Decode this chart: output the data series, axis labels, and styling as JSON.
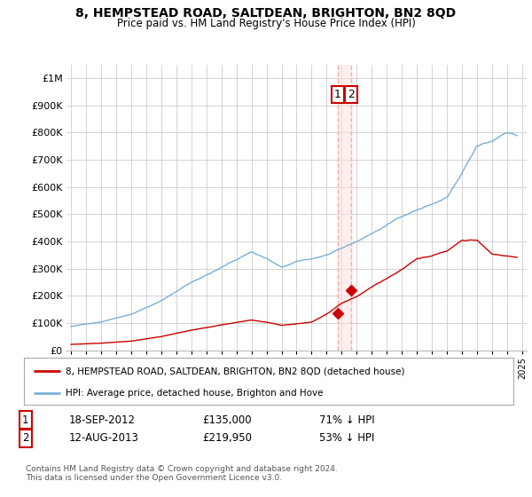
{
  "title": "8, HEMPSTEAD ROAD, SALTDEAN, BRIGHTON, BN2 8QD",
  "subtitle": "Price paid vs. HM Land Registry's House Price Index (HPI)",
  "legend_line1": "8, HEMPSTEAD ROAD, SALTDEAN, BRIGHTON, BN2 8QD (detached house)",
  "legend_line2": "HPI: Average price, detached house, Brighton and Hove",
  "annotation1_date": "18-SEP-2012",
  "annotation1_price": "£135,000",
  "annotation1_hpi": "71% ↓ HPI",
  "annotation2_date": "12-AUG-2013",
  "annotation2_price": "£219,950",
  "annotation2_hpi": "53% ↓ HPI",
  "copyright": "Contains HM Land Registry data © Crown copyright and database right 2024.\nThis data is licensed under the Open Government Licence v3.0.",
  "sale1_x": 2012.72,
  "sale1_y": 135000,
  "sale2_x": 2013.62,
  "sale2_y": 219950,
  "hpi_color": "#7ab0d4",
  "price_color": "#cc0000",
  "vline_color": "#ffaaaa",
  "vfill_color": "#ffe0e0",
  "bg_color": "#ffffff",
  "grid_color": "#cccccc",
  "ylim": [
    0,
    1050000
  ],
  "xlim": [
    1994.7,
    2025.3
  ]
}
